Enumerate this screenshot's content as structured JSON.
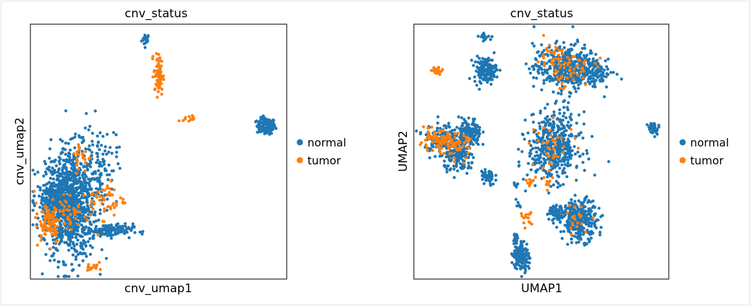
{
  "chart_data": [
    {
      "type": "scatter",
      "title": "cnv_status",
      "xlabel": "cnv_umap1",
      "ylabel": "cnv_umap2",
      "xlim": [
        0,
        100
      ],
      "ylim": [
        0,
        100
      ],
      "legend": {
        "placement": "right",
        "entries": [
          "normal",
          "tumor"
        ]
      },
      "series": [
        {
          "name": "normal",
          "color": "#1f77b4",
          "clusters": [
            {
              "cx": 45,
              "cy": 94,
              "sx": 0.8,
              "sy": 1.2,
              "n": 20
            },
            {
              "cx": 92,
              "cy": 60,
              "sx": 1.8,
              "sy": 1.6,
              "n": 120
            },
            {
              "cx": 16,
              "cy": 30,
              "sx": 5,
              "sy": 11,
              "n": 900
            },
            {
              "cx": 10,
              "cy": 30,
              "sx": 3.5,
              "sy": 5,
              "n": 300
            },
            {
              "cx": 27,
              "cy": 45,
              "sx": 3.5,
              "sy": 8,
              "n": 100
            },
            {
              "cx": 31,
              "cy": 19,
              "sx": 4.5,
              "sy": 1.3,
              "n": 120
            }
          ]
        },
        {
          "name": "tumor",
          "color": "#ff7f0e",
          "clusters": [
            {
              "cx": 50,
              "cy": 80,
              "sx": 0.9,
              "sy": 4,
              "n": 70
            },
            {
              "cx": 62,
              "cy": 63,
              "sx": 1.2,
              "sy": 0.6,
              "n": 15
            },
            {
              "cx": 30,
              "cy": 31,
              "sx": 3.5,
              "sy": 3.5,
              "n": 50
            },
            {
              "cx": 7,
              "cy": 22,
              "sx": 2.5,
              "sy": 4,
              "n": 80
            },
            {
              "cx": 15,
              "cy": 26,
              "sx": 4,
              "sy": 4,
              "n": 50
            },
            {
              "cx": 20,
              "cy": 48,
              "sx": 2,
              "sy": 3,
              "n": 25
            },
            {
              "cx": 24,
              "cy": 5,
              "sx": 1.2,
              "sy": 1.5,
              "n": 15
            }
          ]
        }
      ]
    },
    {
      "type": "scatter",
      "title": "cnv_status",
      "xlabel": "UMAP1",
      "ylabel": "UMAP2",
      "xlim": [
        0,
        100
      ],
      "ylim": [
        0,
        100
      ],
      "legend": {
        "placement": "right",
        "entries": [
          "normal",
          "tumor"
        ]
      },
      "series": [
        {
          "name": "normal",
          "color": "#1f77b4",
          "clusters": [
            {
              "cx": 28,
              "cy": 95,
              "sx": 1.2,
              "sy": 0.6,
              "n": 20
            },
            {
              "cx": 28,
              "cy": 82,
              "sx": 2.2,
              "sy": 2.5,
              "n": 150
            },
            {
              "cx": 60,
              "cy": 83,
              "sx": 6.5,
              "sy": 4.5,
              "n": 420
            },
            {
              "cx": 72,
              "cy": 81,
              "sx": 3,
              "sy": 2.5,
              "n": 60
            },
            {
              "cx": 11,
              "cy": 55,
              "sx": 3.5,
              "sy": 3.5,
              "n": 140
            },
            {
              "cx": 22,
              "cy": 57,
              "sx": 2.2,
              "sy": 3,
              "n": 130
            },
            {
              "cx": 18,
              "cy": 47,
              "sx": 3,
              "sy": 2.8,
              "n": 110
            },
            {
              "cx": 29,
              "cy": 40,
              "sx": 1.4,
              "sy": 1.8,
              "n": 50
            },
            {
              "cx": 55,
              "cy": 52,
              "sx": 5,
              "sy": 6.5,
              "n": 480
            },
            {
              "cx": 94,
              "cy": 59,
              "sx": 1.1,
              "sy": 1.3,
              "n": 40
            },
            {
              "cx": 65,
              "cy": 23,
              "sx": 3.5,
              "sy": 4,
              "n": 280
            },
            {
              "cx": 56,
              "cy": 26,
              "sx": 2,
              "sy": 1.5,
              "n": 60
            },
            {
              "cx": 42,
              "cy": 9,
              "sx": 1.5,
              "sy": 3,
              "n": 150
            },
            {
              "cx": 40,
              "cy": 16,
              "sx": 0.6,
              "sy": 1.2,
              "n": 15
            },
            {
              "cx": 41,
              "cy": 30,
              "sx": 0.5,
              "sy": 0.8,
              "n": 6
            },
            {
              "cx": 39,
              "cy": 37,
              "sx": 1.2,
              "sy": 0.5,
              "n": 6
            }
          ]
        },
        {
          "name": "tumor",
          "color": "#ff7f0e",
          "clusters": [
            {
              "cx": 9,
              "cy": 82,
              "sx": 1.2,
              "sy": 0.8,
              "n": 20
            },
            {
              "cx": 54,
              "cy": 88,
              "sx": 2.5,
              "sy": 2.5,
              "n": 30
            },
            {
              "cx": 61,
              "cy": 82,
              "sx": 5,
              "sy": 3.5,
              "n": 50
            },
            {
              "cx": 9,
              "cy": 54,
              "sx": 3.5,
              "sy": 2,
              "n": 90
            },
            {
              "cx": 17,
              "cy": 52,
              "sx": 2.5,
              "sy": 2.5,
              "n": 40
            },
            {
              "cx": 55,
              "cy": 52,
              "sx": 4.5,
              "sy": 5,
              "n": 40
            },
            {
              "cx": 44,
              "cy": 24,
              "sx": 1.2,
              "sy": 1.2,
              "n": 15
            },
            {
              "cx": 46,
              "cy": 38,
              "sx": 0.8,
              "sy": 1,
              "n": 10
            },
            {
              "cx": 64,
              "cy": 23,
              "sx": 3,
              "sy": 3,
              "n": 20
            },
            {
              "cx": 52,
              "cy": 38,
              "sx": 1,
              "sy": 1.2,
              "n": 8
            }
          ]
        }
      ]
    }
  ]
}
